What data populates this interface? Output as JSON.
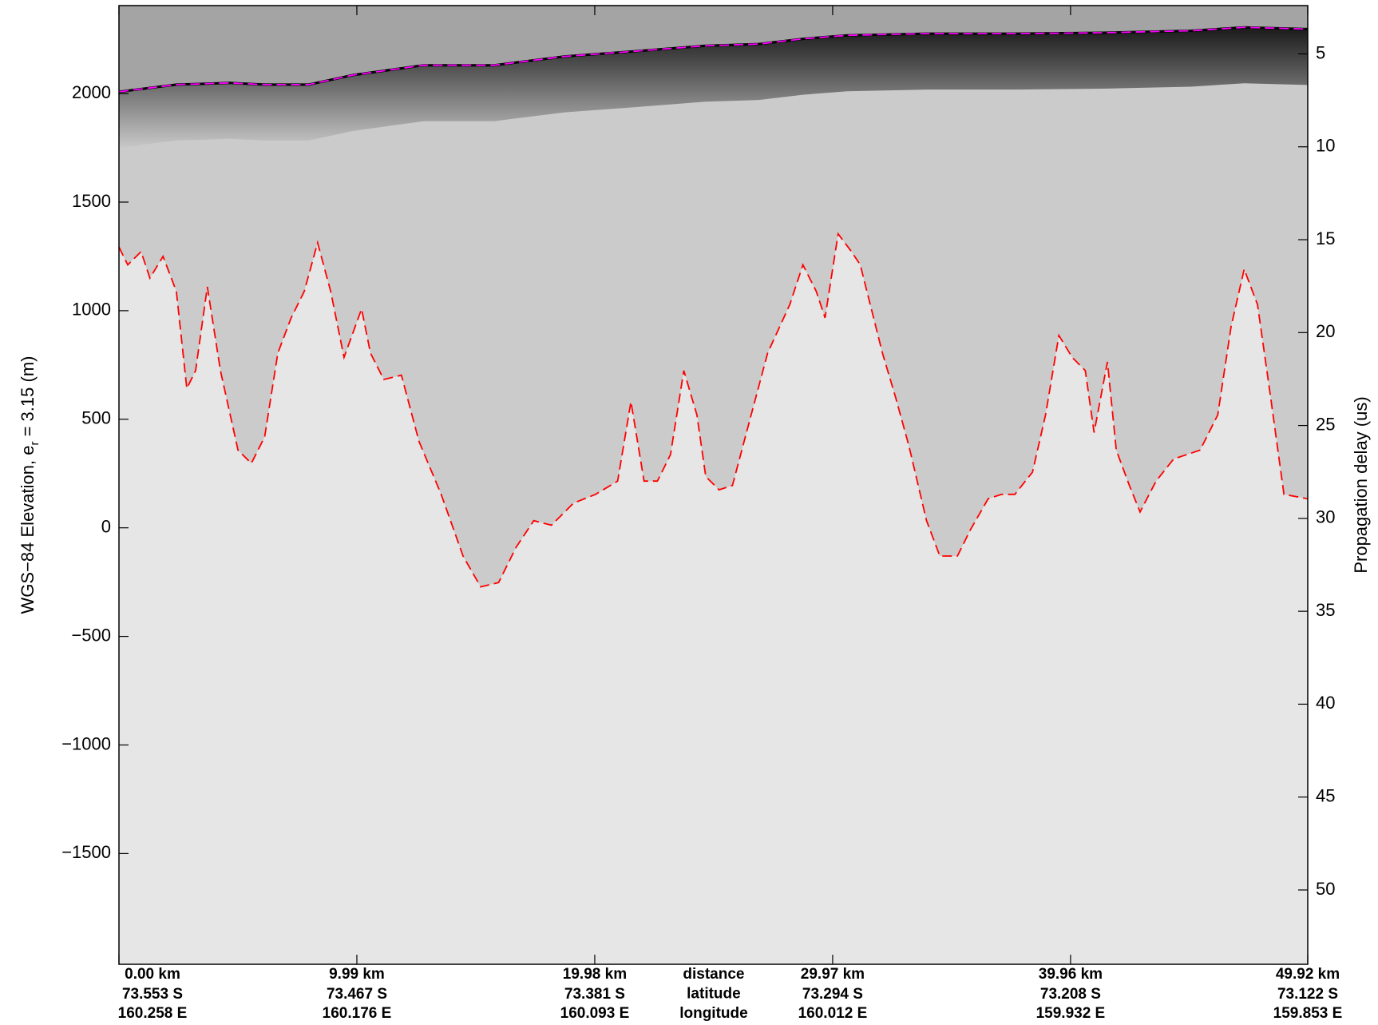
{
  "chart_data": {
    "type": "line",
    "ylabel": "WGS−84 Elevation, e",
    "ylabel_sub": "r",
    "ylabel_suffix": " = 3.15 (m)",
    "y2label": "Propagation delay (us)",
    "xlim": [
      0,
      49.92
    ],
    "xticks": [
      {
        "value": 0,
        "label": "0.00 km"
      },
      {
        "value": 9.99,
        "label": "9.99 km"
      },
      {
        "value": 19.98,
        "label": "19.98 km"
      },
      {
        "value": 29.97,
        "label": "29.97 km"
      },
      {
        "value": 39.96,
        "label": "39.96 km"
      },
      {
        "value": 49.92,
        "label": "49.92 km"
      }
    ],
    "latitude_labels": [
      "73.553 S",
      "73.467 S",
      "73.381 S",
      "73.294 S",
      "73.208 S",
      "73.122 S"
    ],
    "longitude_labels": [
      "160.258 E",
      "160.176 E",
      "160.093 E",
      "160.012 E",
      "159.932 E",
      "159.853 E"
    ],
    "row_labels": [
      "distance",
      "latitude",
      "longitude"
    ],
    "ylim": [
      -2010,
      2405
    ],
    "yticks": [
      {
        "value": -1500,
        "label": "−1500"
      },
      {
        "value": -1000,
        "label": "−1000"
      },
      {
        "value": -500,
        "label": "−500"
      },
      0,
      500,
      1000,
      1500,
      2000
    ],
    "y2lim": [
      2.4,
      54.0
    ],
    "y2ticks": [
      5,
      10,
      15,
      20,
      25,
      30,
      35,
      40,
      45,
      50
    ],
    "series": [
      {
        "color": "#ff00ff",
        "x": [
          0,
          2.41,
          4.63,
          6.12,
          7.97,
          9.82,
          12.79,
          15.75,
          18.72,
          21.68,
          24.64,
          26.87,
          28.72,
          30.58,
          33.91,
          37.62,
          41.32,
          45.03,
          47.25,
          49.92
        ],
        "values": [
          2008,
          2041,
          2049,
          2041,
          2041,
          2085,
          2130,
          2130,
          2171,
          2195,
          2220,
          2228,
          2252,
          2268,
          2276,
          2276,
          2280,
          2289,
          2305,
          2297
        ]
      },
      {
        "color": "#ff0000",
        "x": [
          0,
          0.37,
          0.93,
          1.3,
          1.85,
          2.41,
          2.85,
          3.22,
          3.71,
          4.26,
          5.0,
          5.56,
          6.12,
          6.67,
          7.23,
          7.78,
          8.34,
          8.89,
          9.45,
          10.19,
          10.56,
          11.12,
          11.86,
          12.6,
          13.53,
          14.45,
          15.19,
          15.94,
          16.68,
          17.42,
          18.16,
          19.09,
          20.01,
          20.94,
          21.5,
          22.05,
          22.61,
          23.16,
          23.72,
          24.27,
          24.64,
          25.2,
          25.76,
          26.5,
          27.24,
          28.17,
          28.72,
          29.28,
          29.65,
          30.2,
          30.76,
          31.13,
          31.5,
          32.06,
          32.61,
          33.17,
          33.91,
          34.47,
          35.21,
          35.76,
          36.5,
          37.06,
          37.62,
          38.36,
          38.91,
          39.47,
          40.03,
          40.58,
          40.95,
          41.51,
          41.88,
          42.43,
          42.88,
          43.55,
          44.29,
          45.4,
          46.14,
          46.7,
          47.25,
          47.81,
          48.36,
          48.92,
          49.92
        ],
        "values": [
          1293,
          1211,
          1272,
          1150,
          1250,
          1089,
          642,
          724,
          1110,
          724,
          358,
          297,
          419,
          805,
          967,
          1089,
          1313,
          1089,
          785,
          1008,
          805,
          683,
          703,
          398,
          154,
          -130,
          -272,
          -252,
          -89,
          33,
          12,
          114,
          154,
          215,
          581,
          215,
          215,
          337,
          724,
          520,
          236,
          175,
          195,
          500,
          805,
          1028,
          1211,
          1089,
          967,
          1354,
          1272,
          1211,
          1049,
          805,
          602,
          378,
          33,
          -130,
          -130,
          -8,
          134,
          154,
          154,
          256,
          520,
          886,
          785,
          724,
          439,
          764,
          358,
          195,
          73,
          215,
          317,
          358,
          520,
          927,
          1191,
          1028,
          602,
          154,
          134
        ]
      }
    ]
  }
}
